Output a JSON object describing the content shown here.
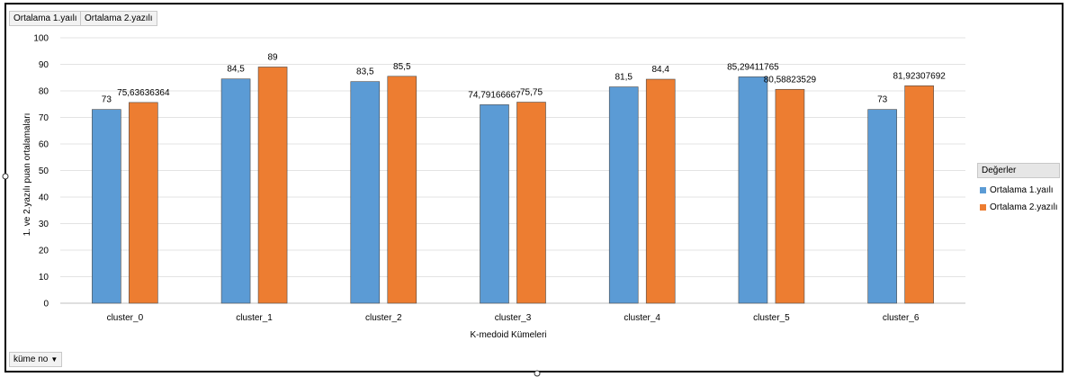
{
  "field_buttons": {
    "series1": "Ortalama 1.yaılı",
    "series2": "Ortalama 2.yazılı"
  },
  "filter_button": {
    "label": "küme no",
    "icon": "dropdown-arrow-icon"
  },
  "legend": {
    "title": "Değerler",
    "placement": "right",
    "items": [
      "Ortalama 1.yaılı",
      "Ortalama 2.yazılı"
    ]
  },
  "chart_data": {
    "type": "bar",
    "categories": [
      "cluster_0",
      "cluster_1",
      "cluster_2",
      "cluster_3",
      "cluster_4",
      "cluster_5",
      "cluster_6"
    ],
    "series": [
      {
        "name": "Ortalama 1.yaılı",
        "color": "#5b9bd5",
        "values": [
          73,
          84.5,
          83.5,
          74.79166667,
          81.5,
          85.29411765,
          73
        ],
        "labels": [
          "73",
          "84,5",
          "83,5",
          "74,79166667",
          "81,5",
          "85,29411765",
          "73"
        ]
      },
      {
        "name": "Ortalama 2.yazılı",
        "color": "#ed7d31",
        "values": [
          75.63636364,
          89,
          85.5,
          75.75,
          84.4,
          80.58823529,
          81.92307692
        ],
        "labels": [
          "75,63636364",
          "89",
          "85,5",
          "75,75",
          "84,4",
          "80,58823529",
          "81,92307692"
        ]
      }
    ],
    "xlabel": "K-medoid Kümeleri",
    "ylabel": "1. ve 2.yazılı puan ortalamaları",
    "ylim": [
      0,
      100
    ],
    "yticks": [
      0,
      10,
      20,
      30,
      40,
      50,
      60,
      70,
      80,
      90,
      100
    ],
    "grid": true
  }
}
